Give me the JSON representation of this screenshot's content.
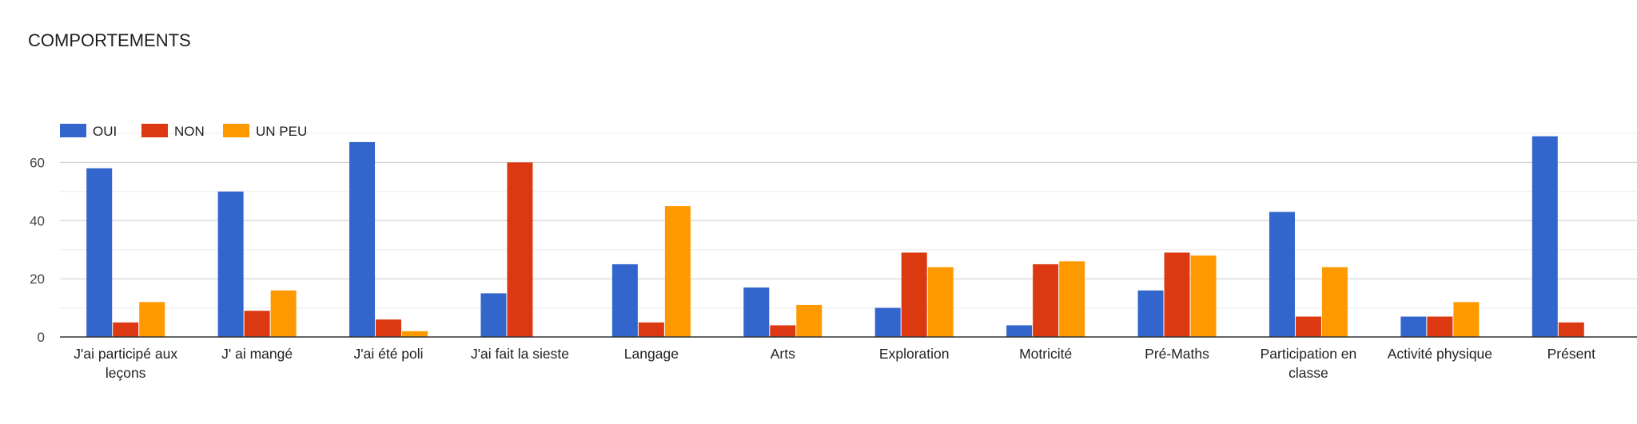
{
  "chart_data": {
    "type": "bar",
    "title": "COMPORTEMENTS",
    "categories": [
      "J'ai participé aux leçons",
      "J' ai mangé",
      "J'ai été poli",
      "J'ai fait la sieste",
      "Langage",
      "Arts",
      "Exploration",
      "Motricité",
      "Pré-Maths",
      "Participation en classe",
      "Activité physique",
      "Présent"
    ],
    "series": [
      {
        "name": "OUI",
        "color": "#3366cc",
        "values": [
          58,
          50,
          67,
          15,
          25,
          17,
          10,
          4,
          16,
          43,
          7,
          69
        ]
      },
      {
        "name": "NON",
        "color": "#dc3912",
        "values": [
          5,
          9,
          6,
          60,
          5,
          4,
          29,
          25,
          29,
          7,
          7,
          5
        ]
      },
      {
        "name": "UN PEU",
        "color": "#ff9900",
        "values": [
          12,
          16,
          2,
          0,
          45,
          11,
          24,
          26,
          28,
          24,
          12,
          0
        ]
      }
    ],
    "yticks": [
      0,
      20,
      40,
      60
    ],
    "ylim": [
      0,
      70
    ],
    "grid": true,
    "legend": "top-left",
    "xlabel": "",
    "ylabel": ""
  }
}
